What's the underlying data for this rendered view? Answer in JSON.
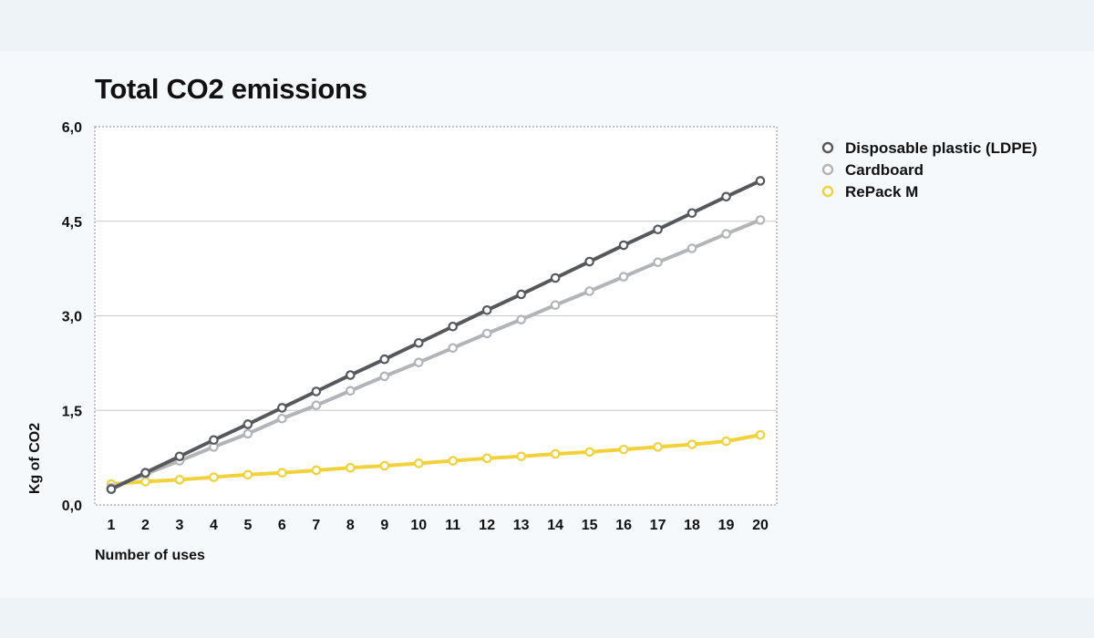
{
  "colors": {
    "Disposable plastic (LDPE)": "#56585c",
    "Cardboard": "#b3b4b7",
    "RePack M": "#f2d23a",
    "grid": "#c8c8c8",
    "frame": "#8a8a8a",
    "plot_bg": "#ffffff"
  },
  "chart_data": {
    "type": "line",
    "title": "Total CO2 emissions",
    "xlabel": "Number of uses",
    "ylabel": "Kg of CO2",
    "x": [
      1,
      2,
      3,
      4,
      5,
      6,
      7,
      8,
      9,
      10,
      11,
      12,
      13,
      14,
      15,
      16,
      17,
      18,
      19,
      20
    ],
    "ylim": [
      0,
      6
    ],
    "yticks": [
      0,
      1.5,
      3,
      4.5,
      6
    ],
    "ytick_labels": [
      "0,0",
      "1,5",
      "3,0",
      "4,5",
      "6,0"
    ],
    "grid": true,
    "legend_position": "right",
    "series": [
      {
        "name": "Disposable plastic (LDPE)",
        "values": [
          0.25,
          0.51,
          0.77,
          1.03,
          1.28,
          1.54,
          1.8,
          2.06,
          2.31,
          2.57,
          2.83,
          3.09,
          3.34,
          3.6,
          3.86,
          4.12,
          4.37,
          4.63,
          4.89,
          5.14
        ]
      },
      {
        "name": "Cardboard",
        "values": [
          0.27,
          0.49,
          0.7,
          0.92,
          1.13,
          1.37,
          1.58,
          1.81,
          2.04,
          2.26,
          2.49,
          2.72,
          2.94,
          3.17,
          3.39,
          3.62,
          3.85,
          4.07,
          4.3,
          4.52
        ]
      },
      {
        "name": "RePack M",
        "values": [
          0.33,
          0.37,
          0.4,
          0.44,
          0.48,
          0.51,
          0.55,
          0.59,
          0.62,
          0.66,
          0.7,
          0.74,
          0.77,
          0.81,
          0.84,
          0.88,
          0.92,
          0.96,
          1.01,
          1.11
        ]
      }
    ]
  }
}
